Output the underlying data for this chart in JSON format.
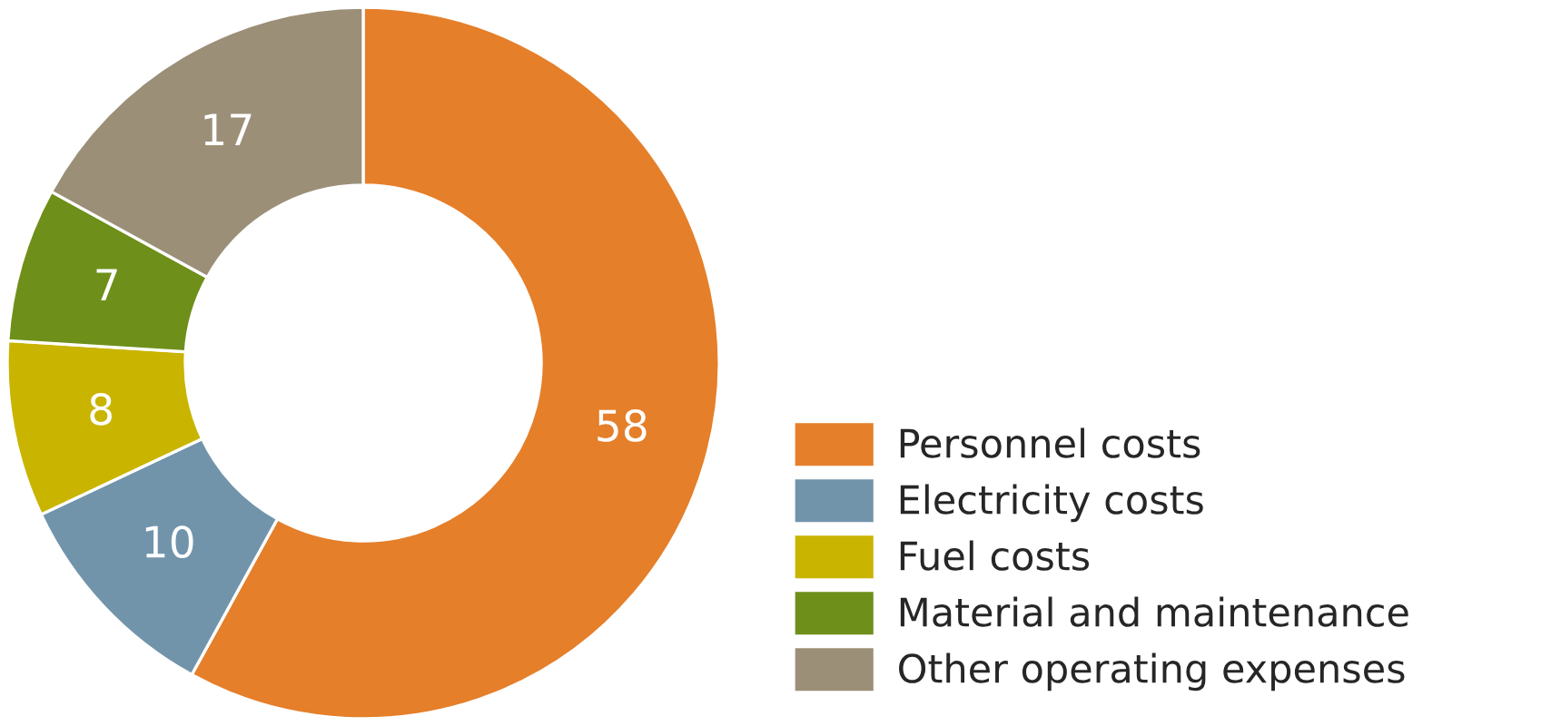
{
  "chart_data": {
    "type": "donut",
    "categories": [
      "Personnel costs",
      "Electricity costs",
      "Fuel costs",
      "Material and maintenance",
      "Other operating expenses"
    ],
    "values": [
      58,
      10,
      8,
      7,
      17
    ],
    "colors": [
      "#e57f2a",
      "#7294ab",
      "#c9b400",
      "#6e8f1a",
      "#9b8f78"
    ],
    "data_labels": true,
    "legend": "bottom right"
  }
}
